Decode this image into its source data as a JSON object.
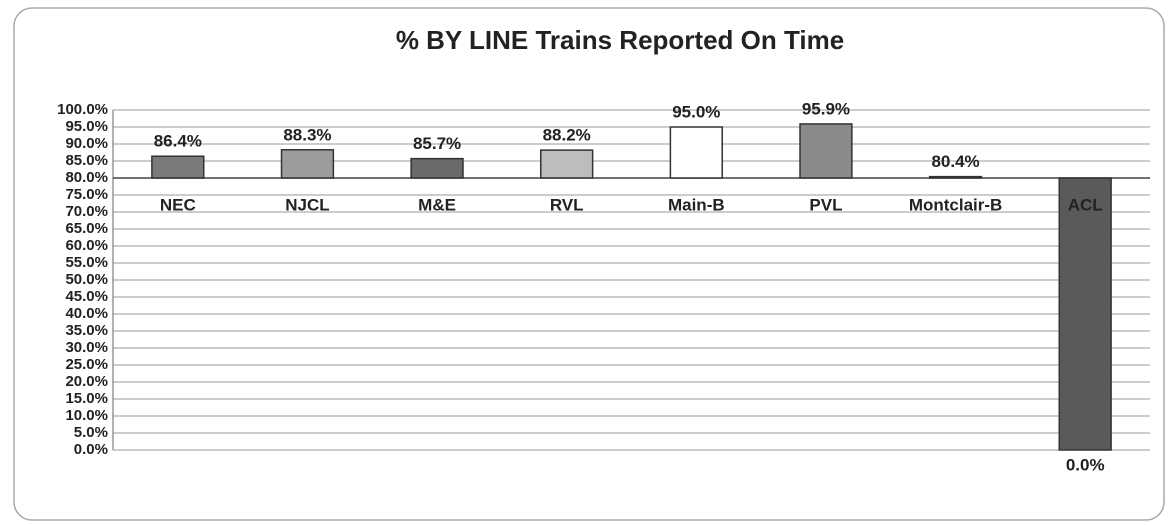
{
  "chart_data": {
    "type": "bar",
    "title": "%  BY LINE Trains Reported On Time",
    "categories": [
      "NEC",
      "NJCL",
      "M&E",
      "RVL",
      "Main-B",
      "PVL",
      "Montclair-B",
      "ACL"
    ],
    "values": [
      86.4,
      88.3,
      85.7,
      88.2,
      95.0,
      95.9,
      80.4,
      0.0
    ],
    "value_labels": [
      "86.4%",
      "88.3%",
      "85.7%",
      "88.2%",
      "95.0%",
      "95.9%",
      "80.4%",
      "0.0%"
    ],
    "colors": [
      "#7a7a7a",
      "#9c9c9c",
      "#6a6a6a",
      "#bdbdbd",
      "#ffffff",
      "#8a8a8a",
      "#6a6a6a",
      "#5a5a5a"
    ],
    "x_axis_crosses": 80,
    "ylim": [
      0,
      100
    ],
    "yticks": [
      {
        "value": 0,
        "label": "0.0%"
      },
      {
        "value": 5,
        "label": "5.0%"
      },
      {
        "value": 10,
        "label": "10.0%"
      },
      {
        "value": 15,
        "label": "15.0%"
      },
      {
        "value": 20,
        "label": "20.0%"
      },
      {
        "value": 25,
        "label": "25.0%"
      },
      {
        "value": 30,
        "label": "30.0%"
      },
      {
        "value": 35,
        "label": "35.0%"
      },
      {
        "value": 40,
        "label": "40.0%"
      },
      {
        "value": 45,
        "label": "45.0%"
      },
      {
        "value": 50,
        "label": "50.0%"
      },
      {
        "value": 55,
        "label": "55.0%"
      },
      {
        "value": 60,
        "label": "60.0%"
      },
      {
        "value": 65,
        "label": "65.0%"
      },
      {
        "value": 70,
        "label": "70.0%"
      },
      {
        "value": 75,
        "label": "75.0%"
      },
      {
        "value": 80,
        "label": "80.0%"
      },
      {
        "value": 85,
        "label": "85.0%"
      },
      {
        "value": 90,
        "label": "90.0%"
      },
      {
        "value": 95,
        "label": "95.0%"
      },
      {
        "value": 100,
        "label": "100.0%"
      }
    ],
    "grid": true
  }
}
